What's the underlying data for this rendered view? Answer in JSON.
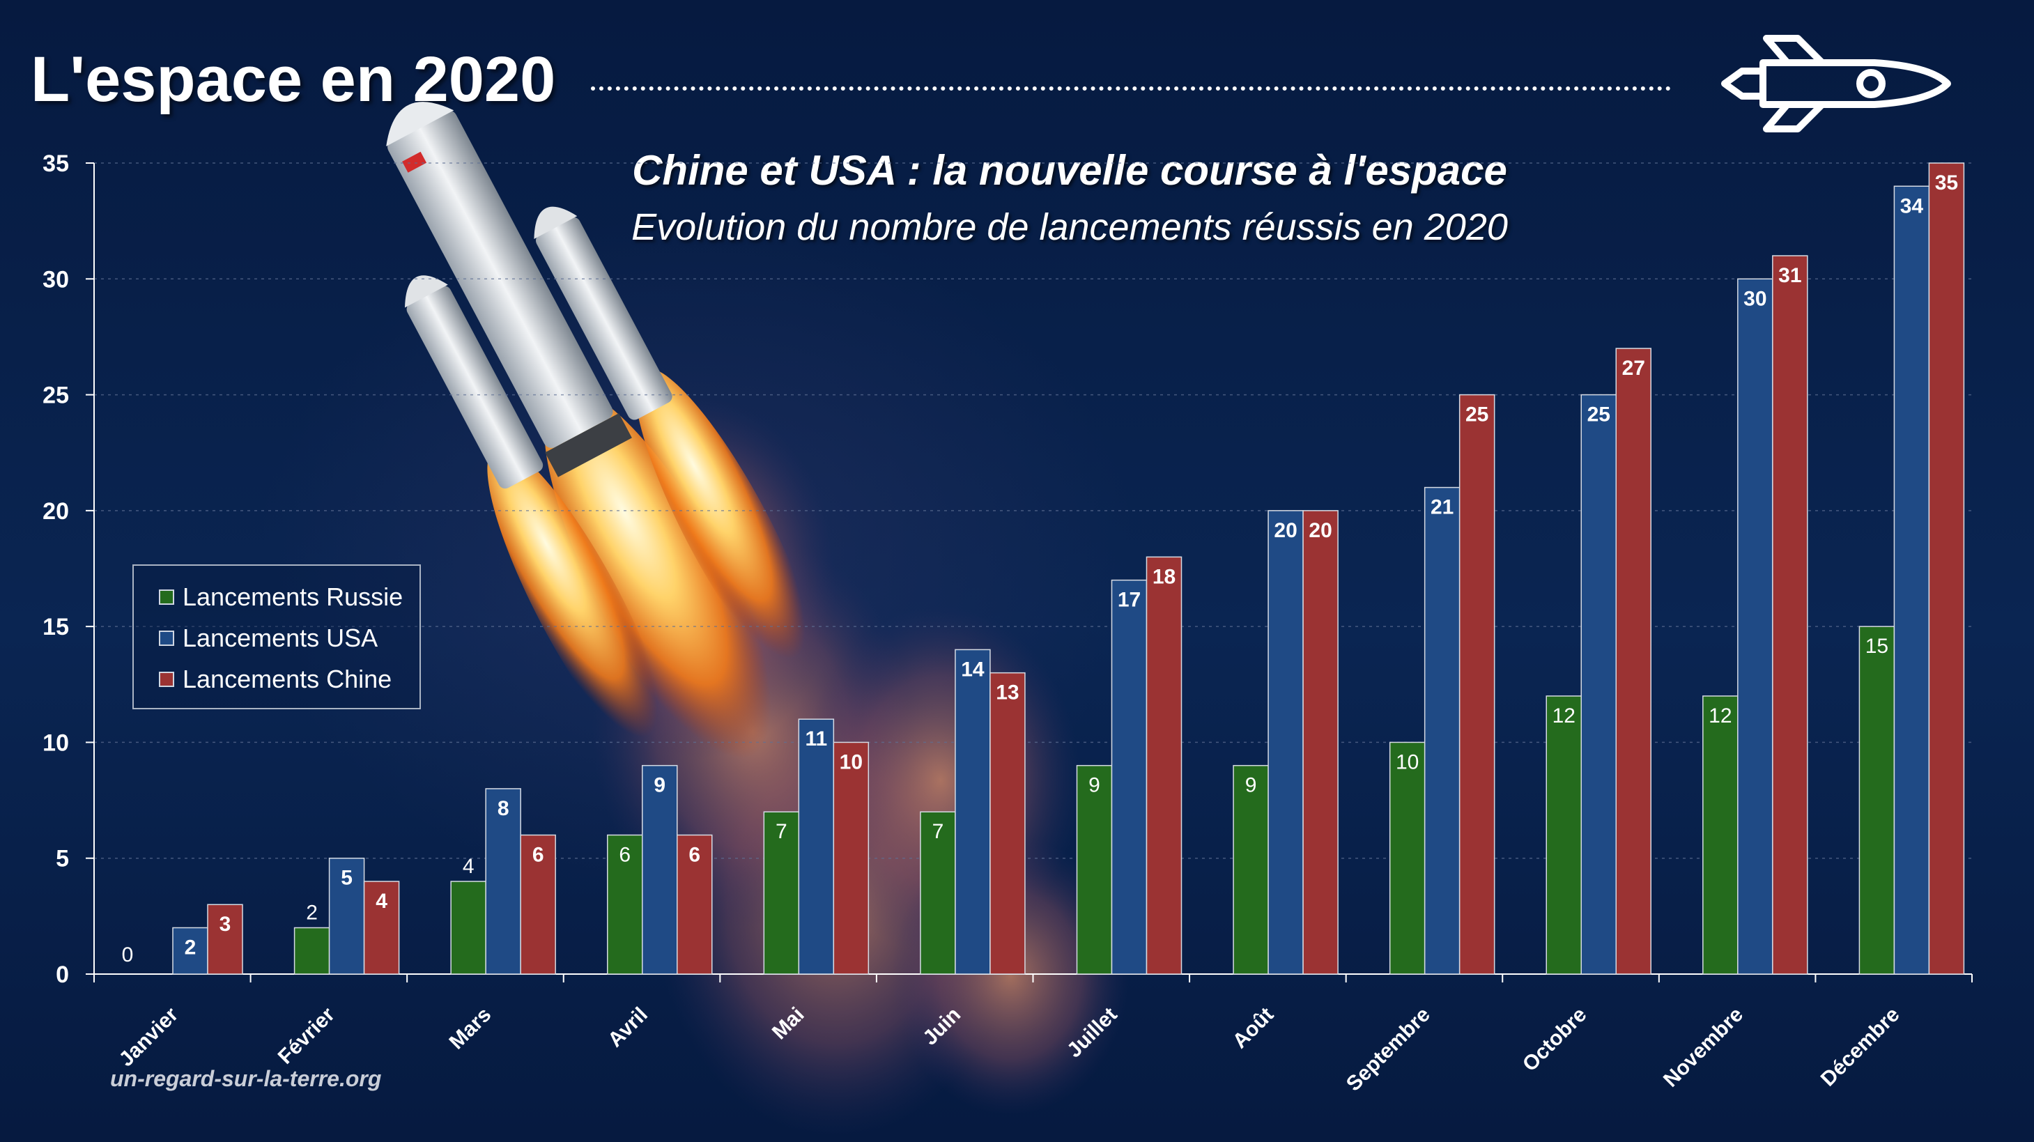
{
  "header": {
    "title": "L'espace en 2020",
    "watermark": "un-regard-sur-la-terre.org"
  },
  "icons": {
    "header_icon": "rocket-outline-icon",
    "background_image": "rocket-launch-photo"
  },
  "chart_data": {
    "type": "bar",
    "title": "Chine et USA : la nouvelle course à l'espace",
    "subtitle": "Evolution du nombre de lancements réussis en 2020",
    "categories": [
      "Janvier",
      "Février",
      "Mars",
      "Avril",
      "Mai",
      "Juin",
      "Juillet",
      "Août",
      "Septembre",
      "Octobre",
      "Novembre",
      "Décembre"
    ],
    "series": [
      {
        "name": "Lancements Russie",
        "color": "#246b1d",
        "values": [
          0,
          2,
          4,
          6,
          7,
          7,
          9,
          9,
          10,
          12,
          12,
          15
        ]
      },
      {
        "name": "Lancements USA",
        "color": "#1f4a85",
        "values": [
          2,
          5,
          8,
          9,
          11,
          14,
          17,
          20,
          21,
          25,
          30,
          34
        ]
      },
      {
        "name": "Lancements Chine",
        "color": "#9b3333",
        "values": [
          3,
          4,
          6,
          6,
          10,
          13,
          18,
          20,
          25,
          27,
          31,
          35
        ]
      }
    ],
    "xlabel": "",
    "ylabel": "",
    "ylim": [
      0,
      35
    ],
    "yticks": [
      0,
      5,
      10,
      15,
      20,
      25,
      30,
      35
    ],
    "grid": true,
    "legend_position": "left-middle",
    "data_labels": true
  }
}
